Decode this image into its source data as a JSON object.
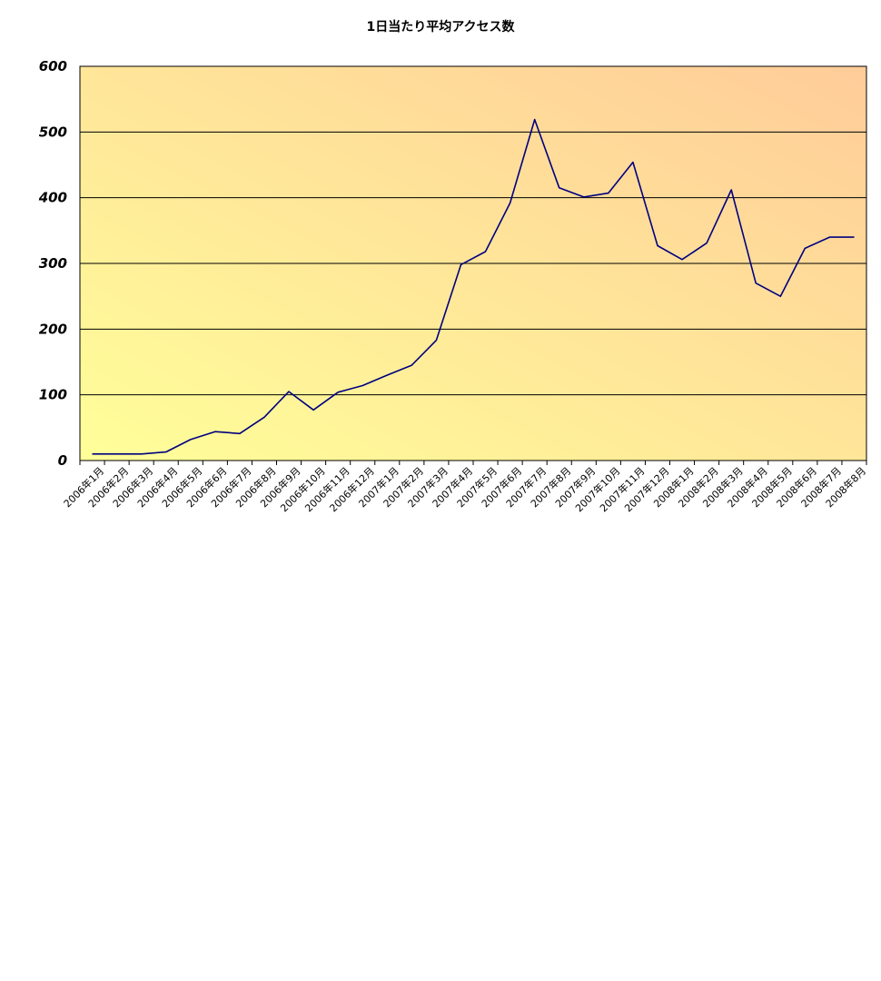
{
  "chart_data": {
    "type": "line",
    "title": "1日当たり平均アクセス数",
    "xlabel": "",
    "ylabel": "",
    "ylim": [
      0,
      600
    ],
    "yticks": [
      "0",
      "100",
      "200",
      "300",
      "400",
      "500",
      "600"
    ],
    "grid": true,
    "legend": "none",
    "categories": [
      "2006年1月",
      "2006年2月",
      "2006年3月",
      "2006年4月",
      "2006年5月",
      "2006年6月",
      "2006年7月",
      "2006年8月",
      "2006年9月",
      "2006年10月",
      "2006年11月",
      "2006年12月",
      "2007年1月",
      "2007年2月",
      "2007年3月",
      "2007年4月",
      "2007年5月",
      "2007年6月",
      "2007年7月",
      "2007年8月",
      "2007年9月",
      "2007年10月",
      "2007年11月",
      "2007年12月",
      "2008年1月",
      "2008年2月",
      "2008年3月",
      "2008年4月",
      "2008年5月",
      "2008年6月",
      "2008年7月",
      "2008年8月"
    ],
    "values": [
      10,
      10,
      10,
      13,
      32,
      44,
      41,
      66,
      105,
      77,
      104,
      114,
      130,
      145,
      183,
      298,
      318,
      392,
      519,
      415,
      401,
      407,
      454,
      327,
      306,
      331,
      412,
      270,
      250,
      323,
      340,
      340
    ],
    "colors": {
      "line": "#000080",
      "bg_light": "#ffff99",
      "bg_dark": "#ffcc99",
      "grid": "#000000"
    }
  }
}
